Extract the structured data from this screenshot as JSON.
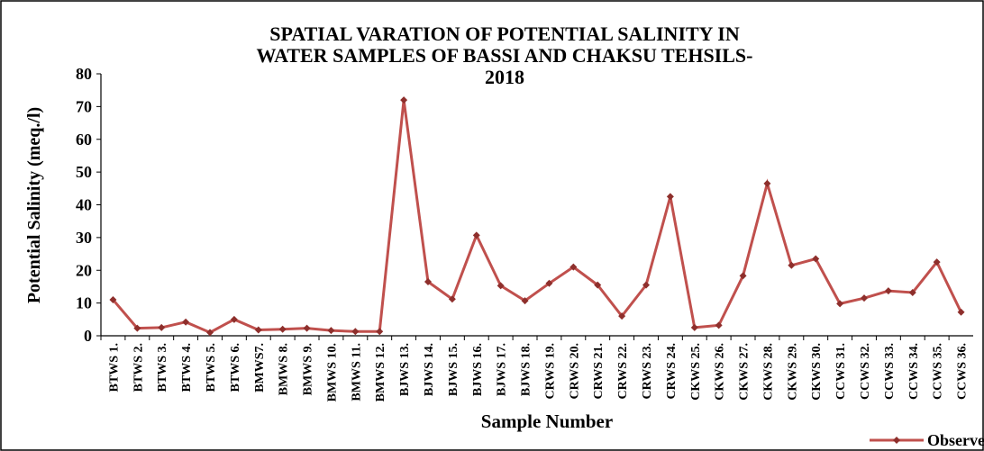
{
  "chart_data": {
    "type": "line",
    "title": [
      "SPATIAL VARATION OF POTENTIAL SALINITY IN",
      "WATER SAMPLES OF BASSI AND CHAKSU TEHSILS-",
      "2018"
    ],
    "x_label": "Sample Number",
    "y_label": "Potential Salinity (meq./l)",
    "categories": [
      "BTWS 1.",
      "BTWS 2.",
      "BTWS 3.",
      "BTWS 4.",
      "BTWS 5.",
      "BTWS 6.",
      "BMWS7.",
      "BMWS 8.",
      "BMWS 9.",
      "BMWS 10.",
      "BMWS 11.",
      "BMWS 12.",
      "BJWS 13.",
      "BJWS 14.",
      "BJWS 15.",
      "BJWS 16.",
      "BJWS 17.",
      "BJWS 18.",
      "CRWS 19.",
      "CRWS 20.",
      "CRWS 21.",
      "CRWS 22.",
      "CRWS 23.",
      "CRWS 24.",
      "CKWS 25.",
      "CKWS 26.",
      "CKWS 27.",
      "CKWS 28.",
      "CKWS 29.",
      "CKWS 30.",
      "CCWS 31.",
      "CCWS 32.",
      "CCWS 33.",
      "CCWS 34.",
      "CCWS 35.",
      "CCWS 36."
    ],
    "series": [
      {
        "name": "Observed",
        "color": "#c0504d",
        "marker_color": "#8e2f2c",
        "values": [
          11,
          2.3,
          2.5,
          4.2,
          1,
          5,
          1.8,
          2,
          2.3,
          1.6,
          1.3,
          1.3,
          72,
          16.5,
          11.2,
          30.7,
          15.3,
          10.7,
          16,
          21,
          15.5,
          6,
          15.5,
          42.5,
          2.5,
          3.2,
          18.3,
          46.5,
          21.5,
          23.5,
          9.8,
          11.5,
          13.7,
          13.2,
          22.5,
          7.2
        ]
      }
    ],
    "ylim": [
      0,
      80
    ],
    "yticks": [
      0,
      10,
      20,
      30,
      40,
      50,
      60,
      70,
      80
    ],
    "grid": false,
    "legend": "bottom-right"
  }
}
